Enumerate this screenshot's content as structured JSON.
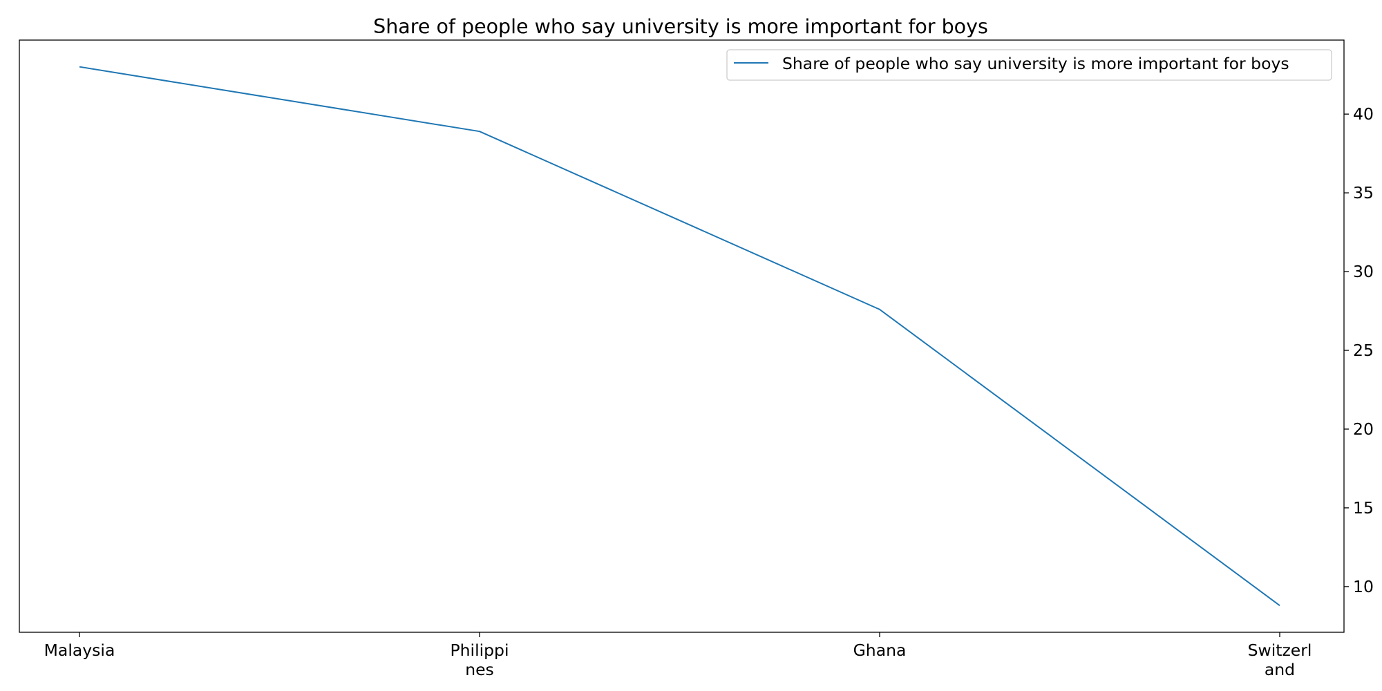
{
  "chart_data": {
    "type": "line",
    "title": "Share of people who say university is more important for boys",
    "xlabel": "",
    "ylabel": "",
    "categories": [
      "Malaysia",
      "Philippines",
      "Ghana",
      "Switzerland"
    ],
    "category_tick_lines": [
      [
        "Malaysia"
      ],
      [
        "Philippi",
        "nes"
      ],
      [
        "Ghana"
      ],
      [
        "Switzerl",
        "and"
      ]
    ],
    "series": [
      {
        "name": "Share of people who say university is more important for boys",
        "values": [
          43.0,
          38.9,
          27.6,
          8.8
        ],
        "color": "#1f77b4"
      }
    ],
    "ylim": [
      7.1,
      44.7
    ],
    "yticks": [
      10,
      15,
      20,
      25,
      30,
      35,
      40
    ],
    "y_axis_side": "right",
    "grid": false,
    "legend_position": "top-right"
  }
}
